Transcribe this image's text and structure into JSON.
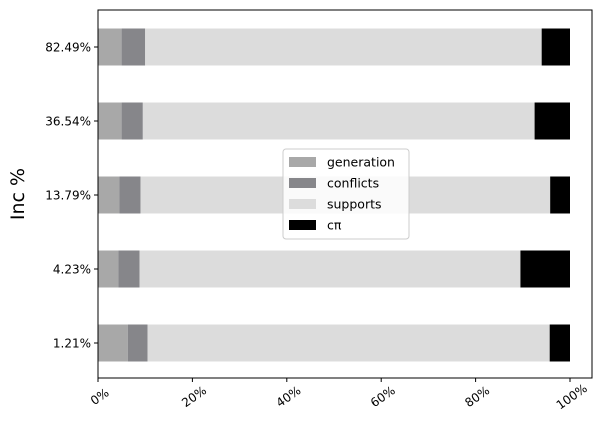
{
  "chart_data": {
    "type": "bar",
    "orientation": "horizontal",
    "stacked": true,
    "ylabel": "Inc %",
    "categories": [
      "82.49%",
      "36.54%",
      "13.79%",
      "4.23%",
      "1.21%"
    ],
    "series": [
      {
        "name": "generation",
        "color": "#a8a8a8",
        "values": [
          5,
          5,
          4.5,
          4.3,
          6.3
        ]
      },
      {
        "name": "conflicts",
        "color": "#86868a",
        "values": [
          5,
          4.5,
          4.5,
          4.5,
          4.2
        ]
      },
      {
        "name": "supports",
        "color": "#dcdcdc",
        "values": [
          84,
          83,
          86.8,
          80.7,
          85.2
        ]
      },
      {
        "name": "cπ",
        "color": "#000000",
        "values": [
          6,
          7.5,
          4.2,
          10.5,
          4.3
        ]
      }
    ],
    "xlim": [
      0,
      100
    ],
    "xticks": [
      "0%",
      "20%",
      "40%",
      "60%",
      "80%",
      "100%"
    ],
    "xtick_values": [
      0,
      20,
      40,
      60,
      80,
      100
    ],
    "legend_position": "center",
    "grid": false
  }
}
